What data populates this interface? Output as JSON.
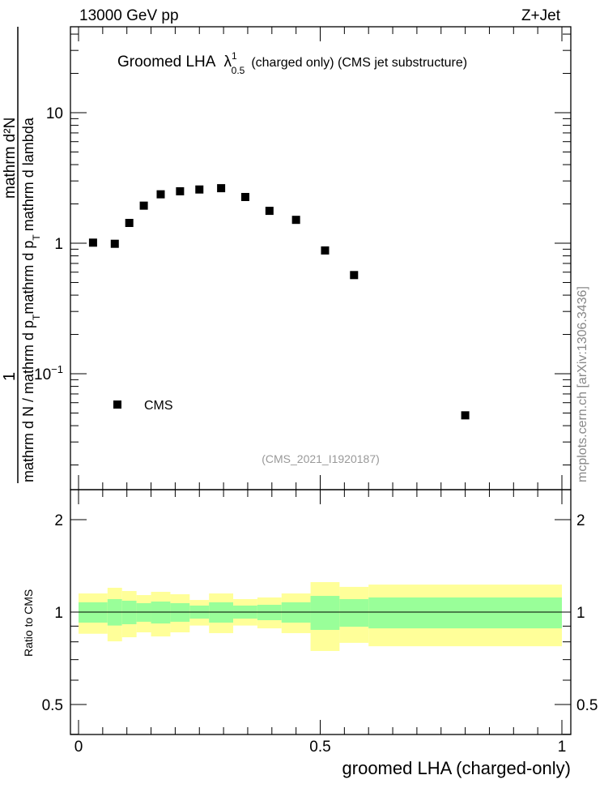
{
  "header": {
    "energy": "13000 GeV pp",
    "process": "Z+Jet"
  },
  "side_label": "mcplots.cern.ch [arXiv:1306.3436]",
  "analysis_id": "(CMS_2021_I1920187)",
  "chart_data": [
    {
      "type": "scatter",
      "title": "Groomed LHA",
      "title_symbol": "λ",
      "title_sup": "1",
      "title_sub": "0.5",
      "title_rest": "(charged only) (CMS jet substructure)",
      "ylabel": {
        "num1": "1",
        "den1": "mathrm d N / mathrm d p",
        "sub": "T",
        "num2": "mathrm d²N",
        "den2a": "mathrm d p",
        "den2b": "mathrm d lambda"
      },
      "yscale": "log",
      "ylim": [
        0.013,
        45
      ],
      "xlim": [
        0,
        1
      ],
      "yticks": [
        {
          "v": 0.1,
          "label": "10",
          "sup": "−1"
        },
        {
          "v": 1,
          "label": "1"
        },
        {
          "v": 10,
          "label": "10"
        }
      ],
      "legend": {
        "label": "CMS",
        "placement": "bottom-left"
      },
      "series": [
        {
          "name": "CMS",
          "x": [
            0.03,
            0.075,
            0.105,
            0.135,
            0.17,
            0.21,
            0.25,
            0.295,
            0.345,
            0.395,
            0.45,
            0.51,
            0.57,
            0.8
          ],
          "y": [
            1.01,
            0.99,
            1.43,
            1.94,
            2.37,
            2.5,
            2.58,
            2.64,
            2.26,
            1.77,
            1.51,
            0.88,
            0.57,
            0.048
          ]
        }
      ]
    },
    {
      "type": "area",
      "ylabel": "Ratio to CMS",
      "xlabel": "groomed LHA (charged-only)",
      "yscale": "log",
      "ylim": [
        0.4,
        2.5
      ],
      "yticks": [
        {
          "v": 0.5,
          "label": "0.5"
        },
        {
          "v": 1,
          "label": "1"
        },
        {
          "v": 2,
          "label": "2"
        }
      ],
      "xticks": [
        {
          "v": 0,
          "label": "0"
        },
        {
          "v": 0.5,
          "label": "0.5"
        },
        {
          "v": 1,
          "label": "1"
        }
      ],
      "bin_edges": [
        0,
        0.06,
        0.09,
        0.12,
        0.15,
        0.19,
        0.23,
        0.27,
        0.32,
        0.37,
        0.42,
        0.48,
        0.54,
        0.6,
        1.0
      ],
      "band_outer_hi": [
        1.15,
        1.2,
        1.171,
        1.136,
        1.164,
        1.143,
        1.095,
        1.15,
        1.102,
        1.116,
        1.15,
        1.252,
        1.208,
        1.229
      ],
      "band_inner_hi": [
        1.076,
        1.102,
        1.089,
        1.069,
        1.082,
        1.069,
        1.05,
        1.076,
        1.05,
        1.056,
        1.076,
        1.129,
        1.102,
        1.116
      ],
      "band_inner_lo": [
        0.924,
        0.904,
        0.913,
        0.93,
        0.918,
        0.93,
        0.952,
        0.924,
        0.952,
        0.941,
        0.924,
        0.875,
        0.896,
        0.885
      ],
      "band_outer_lo": [
        0.85,
        0.803,
        0.828,
        0.859,
        0.833,
        0.859,
        0.904,
        0.854,
        0.904,
        0.885,
        0.854,
        0.747,
        0.794,
        0.774
      ],
      "colors": {
        "outer": "#ffff99",
        "inner": "#99ff99"
      }
    }
  ]
}
